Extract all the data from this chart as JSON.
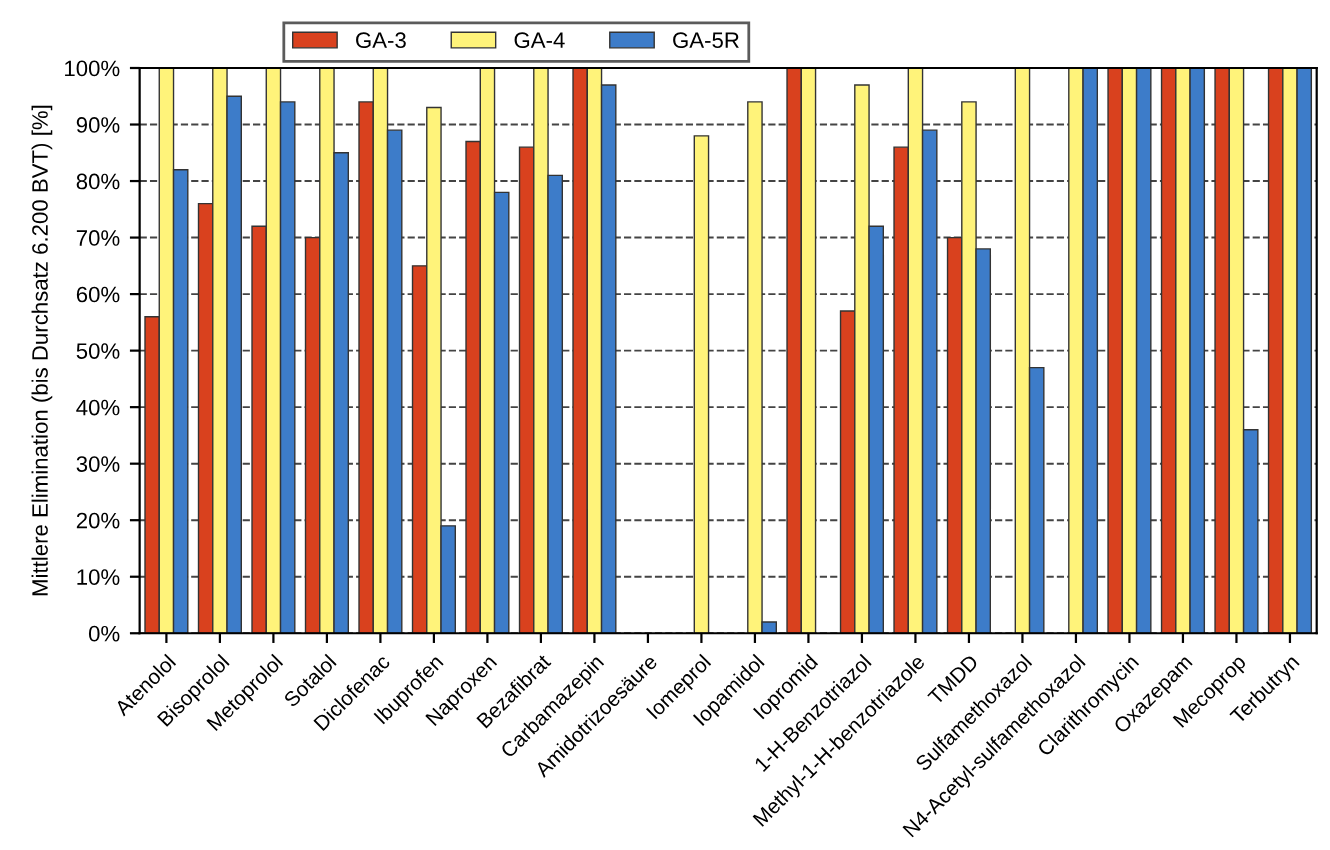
{
  "chart_data": {
    "type": "bar",
    "ylabel": "Mittlere Elimination (bis Durchsatz 6.200 BVT) [%]",
    "categories": [
      "Atenolol",
      "Bisoprolol",
      "Metoprolol",
      "Sotalol",
      "Diclofenac",
      "Ibuprofen",
      "Naproxen",
      "Bezafibrat",
      "Carbamazepin",
      "Amidotrizoesäure",
      "Iomeprol",
      "Iopamidol",
      "Iopromid",
      "1-H-Benzotriazol",
      "Methyl-1-H-benzotriazole",
      "TMDD",
      "Sulfamethoxazol",
      "N4-Acetyl-sulfamethoxazol",
      "Clarithromycin",
      "Oxazepam",
      "Mecoprop",
      "Terbutryn"
    ],
    "series": [
      {
        "name": "GA-3",
        "color": "#d9411e",
        "values": [
          56,
          76,
          72,
          70,
          94,
          65,
          87,
          86,
          100,
          null,
          null,
          null,
          100,
          57,
          86,
          70,
          null,
          null,
          100,
          100,
          100,
          100
        ]
      },
      {
        "name": "GA-4",
        "color": "#fff37a",
        "values": [
          100,
          100,
          100,
          100,
          100,
          93,
          100,
          100,
          100,
          null,
          88,
          94,
          100,
          97,
          100,
          94,
          100,
          100,
          100,
          100,
          100,
          100
        ]
      },
      {
        "name": "GA-5R",
        "color": "#3d7cc9",
        "values": [
          82,
          95,
          94,
          85,
          89,
          19,
          78,
          81,
          97,
          null,
          null,
          2,
          null,
          72,
          89,
          68,
          47,
          100,
          100,
          100,
          36,
          100
        ]
      }
    ],
    "ylim": [
      0,
      100
    ],
    "yticks": [
      {
        "value": 0,
        "label": "0%"
      },
      {
        "value": 10,
        "label": "10%"
      },
      {
        "value": 20,
        "label": "20%"
      },
      {
        "value": 30,
        "label": "30%"
      },
      {
        "value": 40,
        "label": "40%"
      },
      {
        "value": 50,
        "label": "50%"
      },
      {
        "value": 60,
        "label": "60%"
      },
      {
        "value": 70,
        "label": "70%"
      },
      {
        "value": 80,
        "label": "80%"
      },
      {
        "value": 90,
        "label": "90%"
      },
      {
        "value": 100,
        "label": "100%"
      }
    ],
    "grid": "y",
    "legend": "top"
  }
}
